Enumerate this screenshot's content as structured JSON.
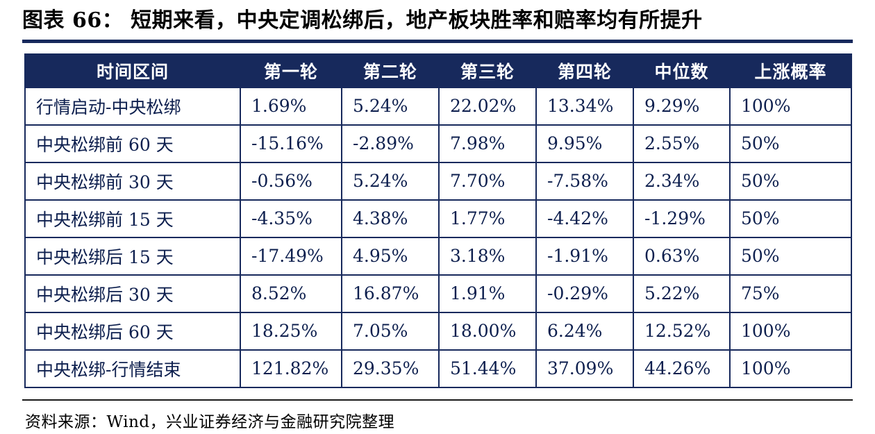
{
  "title": "图表 66：  短期来看，中央定调松绑后，地产板块胜率和赔率均有所提升",
  "source": "资料来源：Wind，兴业证券经济与金融研究院整理",
  "colors": {
    "header_bg": "#17295c",
    "table_border": "#17295c",
    "title_rule": "#17295c",
    "body_text": "#0d1f4e",
    "header_text": "#ffffff",
    "footer_rule": "#1a1a1a"
  },
  "chart_data": {
    "type": "table",
    "title": "短期来看，中央定调松绑后，地产板块胜率和赔率均有所提升",
    "columns": [
      "时间区间",
      "第一轮",
      "第二轮",
      "第三轮",
      "第四轮",
      "中位数",
      "上涨概率"
    ],
    "rows": [
      [
        "行情启动-中央松绑",
        "1.69%",
        "5.24%",
        "22.02%",
        "13.34%",
        "9.29%",
        "100%"
      ],
      [
        "中央松绑前 60 天",
        "-15.16%",
        "-2.89%",
        "7.98%",
        "9.95%",
        "2.55%",
        "50%"
      ],
      [
        "中央松绑前 30 天",
        "-0.56%",
        "5.24%",
        "7.70%",
        "-7.58%",
        "2.34%",
        "50%"
      ],
      [
        "中央松绑前 15 天",
        "-4.35%",
        "4.38%",
        "1.77%",
        "-4.42%",
        "-1.29%",
        "50%"
      ],
      [
        "中央松绑后 15 天",
        "-17.49%",
        "4.95%",
        "3.18%",
        "-1.91%",
        "0.63%",
        "50%"
      ],
      [
        "中央松绑后 30 天",
        "8.52%",
        "16.87%",
        "1.91%",
        "-0.29%",
        "5.22%",
        "75%"
      ],
      [
        "中央松绑后 60 天",
        "18.25%",
        "7.05%",
        "18.00%",
        "6.24%",
        "12.52%",
        "100%"
      ],
      [
        "中央松绑-行情结束",
        "121.82%",
        "29.35%",
        "51.44%",
        "37.09%",
        "44.26%",
        "100%"
      ]
    ]
  }
}
